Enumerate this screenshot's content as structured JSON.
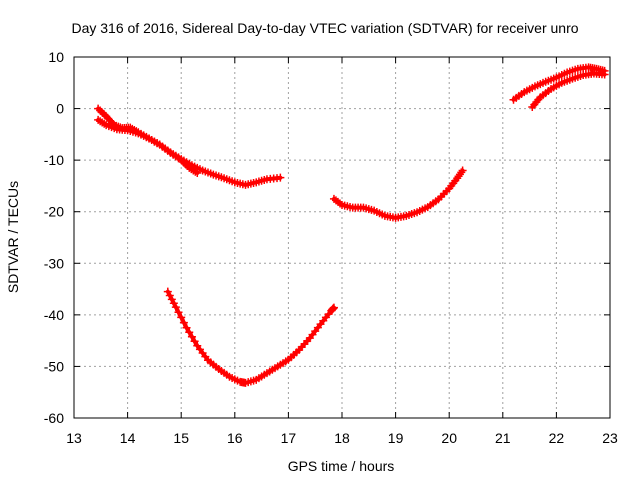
{
  "chart_data": {
    "type": "scatter",
    "title": "Day 316 of 2016, Sidereal Day-to-day VTEC variation (SDTVAR) for receiver unro",
    "xlabel": "GPS time / hours",
    "ylabel": "SDTVAR / TECUs",
    "xlim": [
      13,
      23
    ],
    "ylim": [
      -60,
      10
    ],
    "x_ticks": [
      13,
      14,
      15,
      16,
      17,
      18,
      19,
      20,
      21,
      22,
      23
    ],
    "y_ticks": [
      -60,
      -50,
      -40,
      -30,
      -20,
      -10,
      0,
      10
    ],
    "x_tick_labels": [
      "13",
      "14",
      "15",
      "16",
      "17",
      "18",
      "19",
      "20",
      "21",
      "22",
      "23"
    ],
    "y_tick_labels": [
      "-60",
      "-50",
      "-40",
      "-30",
      "-20",
      "-10",
      "0",
      "10"
    ],
    "grid": true,
    "grid_style": "dotted",
    "marker": "plus",
    "series_color": "#ff0000",
    "series": [
      {
        "values": [
          [
            13.45,
            0.0
          ],
          [
            13.6,
            -1.5
          ],
          [
            13.75,
            -3.2
          ],
          [
            13.9,
            -3.8
          ],
          [
            14.05,
            -3.7
          ],
          [
            14.2,
            -4.6
          ],
          [
            14.4,
            -5.8
          ],
          [
            14.6,
            -7.0
          ],
          [
            14.8,
            -8.5
          ],
          [
            15.0,
            -9.8
          ],
          [
            15.2,
            -11.0
          ],
          [
            15.4,
            -12.0
          ],
          [
            15.6,
            -12.8
          ],
          [
            15.8,
            -13.5
          ],
          [
            16.0,
            -14.3
          ],
          [
            16.2,
            -14.8
          ],
          [
            16.4,
            -14.3
          ],
          [
            16.6,
            -13.7
          ],
          [
            16.85,
            -13.4
          ]
        ]
      },
      {
        "values": [
          [
            13.45,
            -2.2
          ],
          [
            13.6,
            -3.2
          ],
          [
            13.8,
            -4.0
          ],
          [
            14.0,
            -4.2
          ],
          [
            14.2,
            -4.8
          ],
          [
            14.4,
            -5.8
          ],
          [
            14.6,
            -7.0
          ],
          [
            14.8,
            -8.6
          ],
          [
            15.0,
            -10.0
          ],
          [
            15.15,
            -11.5
          ],
          [
            15.3,
            -12.5
          ]
        ]
      },
      {
        "values": [
          [
            17.85,
            -17.5
          ],
          [
            18.0,
            -18.7
          ],
          [
            18.2,
            -19.2
          ],
          [
            18.4,
            -19.2
          ],
          [
            18.6,
            -19.8
          ],
          [
            18.8,
            -20.8
          ],
          [
            19.0,
            -21.2
          ],
          [
            19.2,
            -20.8
          ],
          [
            19.4,
            -20.1
          ],
          [
            19.6,
            -19.1
          ],
          [
            19.8,
            -17.6
          ],
          [
            20.0,
            -15.5
          ],
          [
            20.15,
            -13.5
          ],
          [
            20.25,
            -12.0
          ]
        ]
      },
      {
        "values": [
          [
            14.75,
            -35.5
          ],
          [
            14.9,
            -38.5
          ],
          [
            15.1,
            -42.5
          ],
          [
            15.3,
            -46.0
          ],
          [
            15.5,
            -48.8
          ],
          [
            15.7,
            -50.5
          ],
          [
            15.9,
            -52.0
          ],
          [
            16.1,
            -53.0
          ],
          [
            16.2,
            -53.2
          ],
          [
            16.4,
            -52.6
          ],
          [
            16.6,
            -51.3
          ],
          [
            16.8,
            -50.0
          ],
          [
            17.0,
            -48.7
          ],
          [
            17.2,
            -46.8
          ],
          [
            17.4,
            -44.5
          ],
          [
            17.6,
            -41.8
          ],
          [
            17.8,
            -39.2
          ],
          [
            17.85,
            -38.6
          ]
        ]
      },
      {
        "values": [
          [
            21.2,
            1.7
          ],
          [
            21.4,
            3.2
          ],
          [
            21.6,
            4.3
          ],
          [
            21.8,
            5.2
          ],
          [
            22.0,
            6.0
          ],
          [
            22.2,
            7.0
          ],
          [
            22.4,
            7.7
          ],
          [
            22.6,
            8.0
          ],
          [
            22.75,
            7.7
          ],
          [
            22.9,
            7.3
          ]
        ]
      },
      {
        "values": [
          [
            21.55,
            0.3
          ],
          [
            21.7,
            2.2
          ],
          [
            21.9,
            3.8
          ],
          [
            22.1,
            5.0
          ],
          [
            22.3,
            5.8
          ],
          [
            22.5,
            6.5
          ],
          [
            22.7,
            6.8
          ],
          [
            22.9,
            6.6
          ]
        ]
      }
    ]
  }
}
